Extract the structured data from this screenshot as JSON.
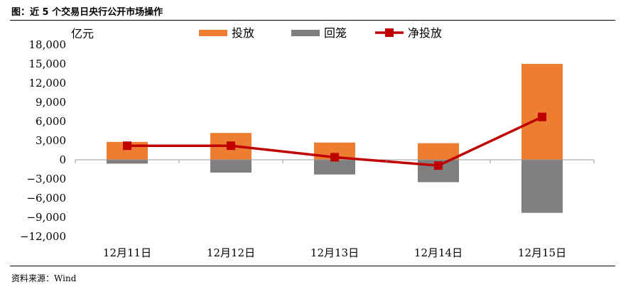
{
  "figure_title": "图：近 5 个交易日央行公开市场操作",
  "source_note": "资料来源：Wind",
  "chart_data": {
    "type": "bar",
    "title": "",
    "unit_label": "亿元",
    "categories": [
      "12月11日",
      "12月12日",
      "12月13日",
      "12月14日",
      "12月15日"
    ],
    "series": [
      {
        "name": "投放",
        "type": "bar",
        "color": "#ED7D31",
        "values": [
          2800,
          4200,
          2700,
          2600,
          15000
        ]
      },
      {
        "name": "回笼",
        "type": "bar",
        "color": "#7F7F7F",
        "values": [
          -600,
          -2000,
          -2300,
          -3500,
          -8300
        ]
      },
      {
        "name": "净投放",
        "type": "line",
        "color": "#C00000",
        "values": [
          2200,
          2200,
          400,
          -900,
          6700
        ]
      }
    ],
    "ylim": [
      -12000,
      18000
    ],
    "yticks": [
      18000,
      15000,
      12000,
      9000,
      6000,
      3000,
      0,
      -3000,
      -6000,
      -9000,
      -12000
    ],
    "ytick_labels": [
      "18,000",
      "15,000",
      "12,000",
      "9,000",
      "6,000",
      "3,000",
      "0",
      "−3,000",
      "−6,000",
      "−9,000",
      "−12,000"
    ],
    "grid": false,
    "legend_position": "top-center"
  }
}
